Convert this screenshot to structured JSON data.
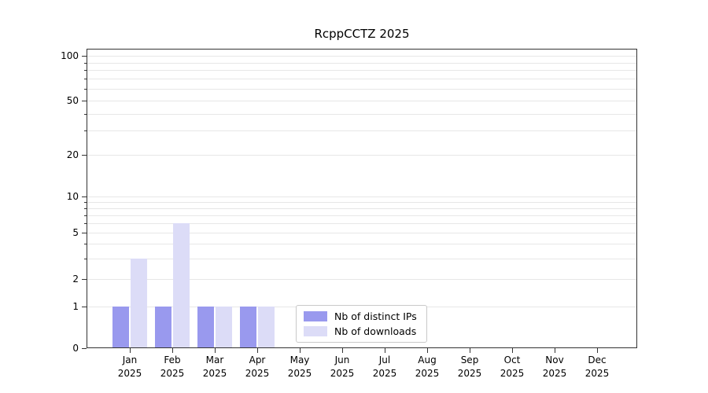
{
  "chart_data": {
    "type": "bar",
    "title": "RcppCCTZ 2025",
    "x_year": "2025",
    "categories": [
      "Jan",
      "Feb",
      "Mar",
      "Apr",
      "May",
      "Jun",
      "Jul",
      "Aug",
      "Sep",
      "Oct",
      "Nov",
      "Dec"
    ],
    "series": [
      {
        "name": "Nb of distinct IPs",
        "color": "#9999ee",
        "values": [
          1,
          1,
          1,
          1,
          0,
          0,
          0,
          0,
          0,
          0,
          0,
          0
        ]
      },
      {
        "name": "Nb of downloads",
        "color": "#dcdcf7",
        "values": [
          3,
          6,
          1,
          1,
          0,
          0,
          0,
          0,
          0,
          0,
          0,
          0
        ]
      }
    ],
    "xlabel": "",
    "ylabel": "",
    "yscale": "log-like",
    "yticks": [
      0,
      1,
      2,
      5,
      10,
      20,
      50,
      100
    ],
    "grid_values": [
      1,
      2,
      3,
      4,
      5,
      6,
      7,
      8,
      9,
      10,
      20,
      30,
      40,
      50,
      60,
      70,
      80,
      90,
      100
    ],
    "ylim": [
      0,
      112
    ],
    "grid": "horizontal",
    "legend_position": "inside-bottom-center",
    "background_color": "#ffffff",
    "grid_color": "#e7e7e7",
    "axis_color": "#333333"
  }
}
